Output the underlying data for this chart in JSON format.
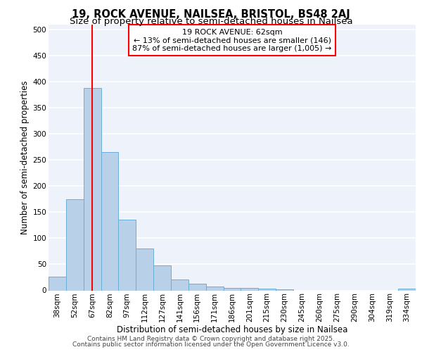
{
  "title1": "19, ROCK AVENUE, NAILSEA, BRISTOL, BS48 2AJ",
  "title2": "Size of property relative to semi-detached houses in Nailsea",
  "xlabel": "Distribution of semi-detached houses by size in Nailsea",
  "ylabel": "Number of semi-detached properties",
  "categories": [
    "38sqm",
    "52sqm",
    "67sqm",
    "82sqm",
    "97sqm",
    "112sqm",
    "127sqm",
    "141sqm",
    "156sqm",
    "171sqm",
    "186sqm",
    "201sqm",
    "215sqm",
    "230sqm",
    "245sqm",
    "260sqm",
    "275sqm",
    "290sqm",
    "304sqm",
    "319sqm",
    "334sqm"
  ],
  "values": [
    27,
    175,
    388,
    265,
    136,
    81,
    48,
    21,
    13,
    8,
    5,
    5,
    4,
    2,
    0,
    0,
    0,
    0,
    0,
    0,
    4
  ],
  "bar_color": "#b8d0e8",
  "bar_edge_color": "#6aaed6",
  "vline_x": 2.0,
  "vline_color": "red",
  "annotation_title": "19 ROCK AVENUE: 62sqm",
  "annotation_line1": "← 13% of semi-detached houses are smaller (146)",
  "annotation_line2": "87% of semi-detached houses are larger (1,005) →",
  "annotation_box_edge": "red",
  "footer1": "Contains HM Land Registry data © Crown copyright and database right 2025.",
  "footer2": "Contains public sector information licensed under the Open Government Licence v3.0.",
  "ylim": [
    0,
    510
  ],
  "yticks": [
    0,
    50,
    100,
    150,
    200,
    250,
    300,
    350,
    400,
    450,
    500
  ],
  "background_color": "#edf2fb",
  "grid_color": "white",
  "title1_fontsize": 10.5,
  "title2_fontsize": 9.5,
  "axis_label_fontsize": 8.5,
  "tick_fontsize": 7.5,
  "annotation_fontsize": 8,
  "footer_fontsize": 6.5
}
